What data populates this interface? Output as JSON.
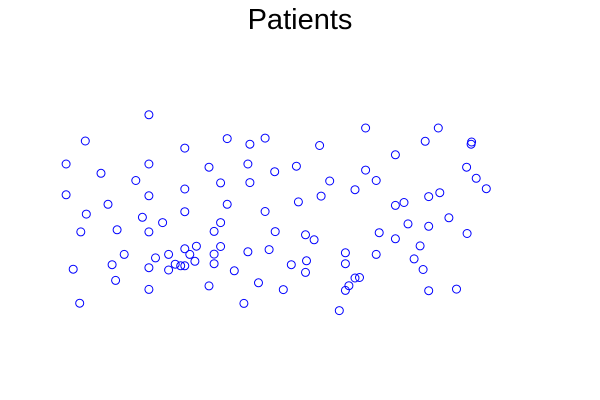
{
  "chart_data": {
    "type": "scatter",
    "title": "Patients",
    "xlabel": "",
    "ylabel": "",
    "axes_visible": false,
    "grid": false,
    "marker": "open-circle",
    "marker_color": "#0000ff",
    "background": "#ffffff",
    "xlim": [
      0,
      100
    ],
    "ylim": [
      0,
      100
    ],
    "points": [
      {
        "x": 2.2,
        "y": 66.4
      },
      {
        "x": 2.2,
        "y": 54.8
      },
      {
        "x": 3.6,
        "y": 26.7
      },
      {
        "x": 4.9,
        "y": 13.9
      },
      {
        "x": 5.1,
        "y": 40.8
      },
      {
        "x": 6.0,
        "y": 75.1
      },
      {
        "x": 6.2,
        "y": 47.5
      },
      {
        "x": 9.1,
        "y": 62.9
      },
      {
        "x": 10.5,
        "y": 51.2
      },
      {
        "x": 11.3,
        "y": 28.4
      },
      {
        "x": 12.0,
        "y": 22.5
      },
      {
        "x": 12.3,
        "y": 41.6
      },
      {
        "x": 13.7,
        "y": 32.3
      },
      {
        "x": 16.0,
        "y": 60.2
      },
      {
        "x": 17.3,
        "y": 46.3
      },
      {
        "x": 18.6,
        "y": 85.0
      },
      {
        "x": 18.6,
        "y": 66.4
      },
      {
        "x": 18.6,
        "y": 54.4
      },
      {
        "x": 18.6,
        "y": 40.8
      },
      {
        "x": 18.6,
        "y": 27.3
      },
      {
        "x": 18.6,
        "y": 19.1
      },
      {
        "x": 19.9,
        "y": 31.0
      },
      {
        "x": 21.3,
        "y": 44.3
      },
      {
        "x": 22.5,
        "y": 32.3
      },
      {
        "x": 22.5,
        "y": 26.4
      },
      {
        "x": 23.8,
        "y": 28.6
      },
      {
        "x": 24.9,
        "y": 28.0
      },
      {
        "x": 25.7,
        "y": 72.4
      },
      {
        "x": 25.7,
        "y": 57.0
      },
      {
        "x": 25.7,
        "y": 48.4
      },
      {
        "x": 25.7,
        "y": 34.4
      },
      {
        "x": 25.7,
        "y": 28.0
      },
      {
        "x": 26.7,
        "y": 32.3
      },
      {
        "x": 27.7,
        "y": 29.7
      },
      {
        "x": 28.0,
        "y": 35.4
      },
      {
        "x": 30.5,
        "y": 65.2
      },
      {
        "x": 30.5,
        "y": 20.4
      },
      {
        "x": 31.5,
        "y": 41.0
      },
      {
        "x": 31.5,
        "y": 32.4
      },
      {
        "x": 31.5,
        "y": 28.8
      },
      {
        "x": 32.8,
        "y": 59.3
      },
      {
        "x": 32.8,
        "y": 44.3
      },
      {
        "x": 32.8,
        "y": 35.3
      },
      {
        "x": 34.1,
        "y": 76.0
      },
      {
        "x": 34.1,
        "y": 51.2
      },
      {
        "x": 35.5,
        "y": 26.1
      },
      {
        "x": 37.4,
        "y": 13.8
      },
      {
        "x": 38.2,
        "y": 66.4
      },
      {
        "x": 38.2,
        "y": 33.3
      },
      {
        "x": 38.6,
        "y": 73.9
      },
      {
        "x": 38.6,
        "y": 59.4
      },
      {
        "x": 40.3,
        "y": 21.6
      },
      {
        "x": 41.6,
        "y": 76.2
      },
      {
        "x": 41.6,
        "y": 48.5
      },
      {
        "x": 42.4,
        "y": 34.1
      },
      {
        "x": 43.5,
        "y": 63.5
      },
      {
        "x": 43.6,
        "y": 40.9
      },
      {
        "x": 45.2,
        "y": 19.0
      },
      {
        "x": 46.8,
        "y": 28.4
      },
      {
        "x": 47.8,
        "y": 65.6
      },
      {
        "x": 48.2,
        "y": 52.1
      },
      {
        "x": 49.6,
        "y": 39.7
      },
      {
        "x": 49.6,
        "y": 25.5
      },
      {
        "x": 49.8,
        "y": 29.9
      },
      {
        "x": 51.3,
        "y": 37.8
      },
      {
        "x": 52.4,
        "y": 73.4
      },
      {
        "x": 52.7,
        "y": 54.3
      },
      {
        "x": 54.4,
        "y": 60.0
      },
      {
        "x": 56.3,
        "y": 11.1
      },
      {
        "x": 57.5,
        "y": 32.9
      },
      {
        "x": 57.5,
        "y": 28.8
      },
      {
        "x": 57.5,
        "y": 18.7
      },
      {
        "x": 58.2,
        "y": 20.5
      },
      {
        "x": 59.4,
        "y": 56.7
      },
      {
        "x": 59.4,
        "y": 23.4
      },
      {
        "x": 60.3,
        "y": 23.6
      },
      {
        "x": 61.5,
        "y": 80.0
      },
      {
        "x": 61.5,
        "y": 64.1
      },
      {
        "x": 63.6,
        "y": 60.2
      },
      {
        "x": 63.6,
        "y": 32.3
      },
      {
        "x": 64.2,
        "y": 40.5
      },
      {
        "x": 67.4,
        "y": 69.9
      },
      {
        "x": 67.4,
        "y": 50.8
      },
      {
        "x": 67.4,
        "y": 38.2
      },
      {
        "x": 69.1,
        "y": 51.9
      },
      {
        "x": 69.9,
        "y": 43.8
      },
      {
        "x": 71.1,
        "y": 30.6
      },
      {
        "x": 72.3,
        "y": 35.5
      },
      {
        "x": 72.9,
        "y": 26.6
      },
      {
        "x": 73.3,
        "y": 75.0
      },
      {
        "x": 74.0,
        "y": 54.1
      },
      {
        "x": 74.0,
        "y": 42.9
      },
      {
        "x": 74.0,
        "y": 18.6
      },
      {
        "x": 75.9,
        "y": 80.0
      },
      {
        "x": 76.2,
        "y": 55.6
      },
      {
        "x": 78.0,
        "y": 46.1
      },
      {
        "x": 79.5,
        "y": 19.2
      },
      {
        "x": 81.5,
        "y": 65.2
      },
      {
        "x": 81.6,
        "y": 40.2
      },
      {
        "x": 82.5,
        "y": 74.7
      },
      {
        "x": 82.4,
        "y": 73.9
      },
      {
        "x": 83.4,
        "y": 61.0
      },
      {
        "x": 85.4,
        "y": 57.1
      }
    ]
  }
}
